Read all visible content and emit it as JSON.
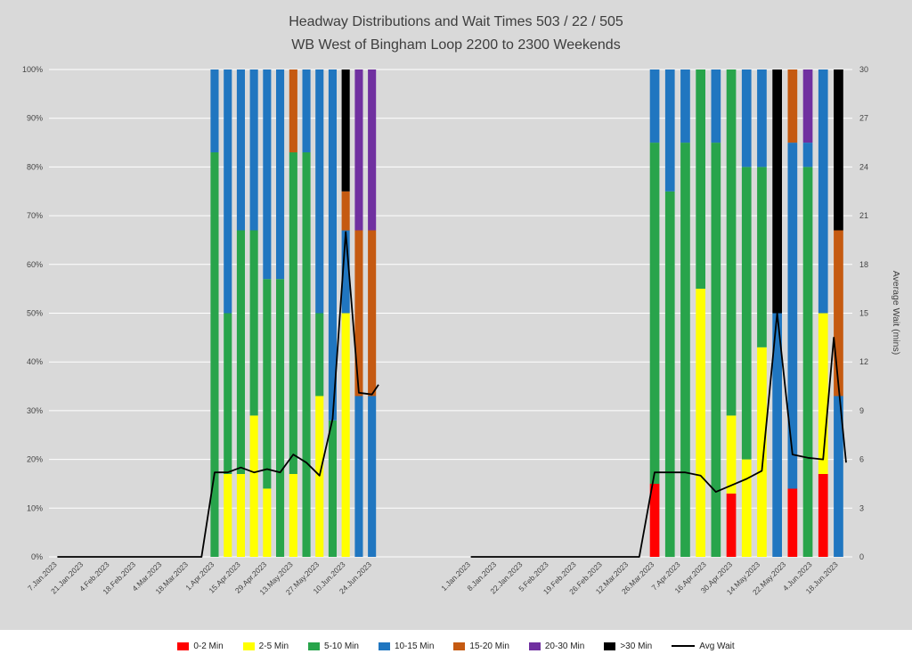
{
  "title": {
    "line1": "Headway Distributions and Wait Times 503 / 22 / 505",
    "line2": "WB West of Bingham Loop 2200 to 2300 Weekends"
  },
  "colors": {
    "page_bg": "#D9D9D9",
    "legend_bg": "#FFFFFF",
    "grid": "#FFFFFF",
    "text": "#404040",
    "red": "#FF0000",
    "yellow": "#FFFF00",
    "green": "#28A44B",
    "blue": "#2076C0",
    "brown": "#C55A11",
    "purple": "#7030A0",
    "black": "#000000",
    "line": "#000000"
  },
  "legend": [
    {
      "key": "0-2",
      "label": "0-2 Min",
      "color_key": "red",
      "type": "swatch"
    },
    {
      "key": "2-5",
      "label": "2-5 Min",
      "color_key": "yellow",
      "type": "swatch"
    },
    {
      "key": "5-10",
      "label": "5-10 Min",
      "color_key": "green",
      "type": "swatch"
    },
    {
      "key": "10-15",
      "label": "10-15 Min",
      "color_key": "blue",
      "type": "swatch"
    },
    {
      "key": "15-20",
      "label": "15-20 Min",
      "color_key": "brown",
      "type": "swatch"
    },
    {
      "key": "20-30",
      "label": "20-30 Min",
      "color_key": "purple",
      "type": "swatch"
    },
    {
      "key": "gt30",
      "label": ">30 Min",
      "color_key": "black",
      "type": "swatch"
    },
    {
      "key": "avg-wait",
      "label": "Avg Wait",
      "color_key": "line",
      "type": "line"
    }
  ],
  "chart_data": {
    "type": "bar",
    "subtype": "100pct-stacked-bars-with-secondary-line",
    "title": "Headway Distributions and Wait Times 503 / 22 / 505 - WB West of Bingham Loop 2200 to 2300 Weekends",
    "ylabel_right": "Average Wait (mins)",
    "ylim_left_pct": [
      0,
      100
    ],
    "ylim_right_min": [
      0,
      30
    ],
    "grid": true,
    "legend_position": "bottom",
    "y_left_ticks": [
      "0%",
      "10%",
      "20%",
      "30%",
      "40%",
      "50%",
      "60%",
      "70%",
      "80%",
      "90%",
      "100%"
    ],
    "y_right_ticks": [
      0,
      3,
      6,
      9,
      12,
      15,
      18,
      21,
      24,
      27,
      30
    ],
    "segment_categories": [
      "0-2 Min",
      "2-5 Min",
      "5-10 Min",
      "10-15 Min",
      "15-20 Min",
      "20-30 Min",
      ">30 Min"
    ],
    "segment_colors": [
      "red",
      "yellow",
      "green",
      "blue",
      "brown",
      "purple",
      "black"
    ],
    "panels": [
      {
        "name": "left-panel",
        "n_slots": 25,
        "tick_labels": [
          {
            "slot": 0,
            "text": "7.Jan.2023"
          },
          {
            "slot": 2,
            "text": "21.Jan.2023"
          },
          {
            "slot": 4,
            "text": "4.Feb.2023"
          },
          {
            "slot": 6,
            "text": "18.Feb.2023"
          },
          {
            "slot": 8,
            "text": "4.Mar.2023"
          },
          {
            "slot": 10,
            "text": "18.Mar.2023"
          },
          {
            "slot": 12,
            "text": "1.Apr.2023"
          },
          {
            "slot": 14,
            "text": "15.Apr.2023"
          },
          {
            "slot": 16,
            "text": "29.Apr.2023"
          },
          {
            "slot": 18,
            "text": "13.May.2023"
          },
          {
            "slot": 20,
            "text": "27.May.2023"
          },
          {
            "slot": 22,
            "text": "10.Jun.2023"
          },
          {
            "slot": 24,
            "text": "24.Jun.2023"
          }
        ],
        "bars": [
          {
            "slot": 12,
            "segments": [
              0,
              0,
              83,
              17,
              0,
              0,
              0
            ]
          },
          {
            "slot": 13,
            "segments": [
              0,
              17,
              33,
              50,
              0,
              0,
              0
            ]
          },
          {
            "slot": 14,
            "segments": [
              0,
              17,
              50,
              33,
              0,
              0,
              0
            ]
          },
          {
            "slot": 15,
            "segments": [
              0,
              29,
              38,
              33,
              0,
              0,
              0
            ]
          },
          {
            "slot": 16,
            "segments": [
              0,
              14,
              43,
              43,
              0,
              0,
              0
            ]
          },
          {
            "slot": 17,
            "segments": [
              0,
              0,
              57,
              43,
              0,
              0,
              0
            ]
          },
          {
            "slot": 18,
            "segments": [
              0,
              17,
              66,
              0,
              17,
              0,
              0
            ]
          },
          {
            "slot": 19,
            "segments": [
              0,
              0,
              83,
              17,
              0,
              0,
              0
            ]
          },
          {
            "slot": 20,
            "segments": [
              0,
              33,
              17,
              50,
              0,
              0,
              0
            ]
          },
          {
            "slot": 21,
            "segments": [
              0,
              0,
              28,
              72,
              0,
              0,
              0
            ]
          },
          {
            "slot": 22,
            "segments": [
              0,
              50,
              0,
              17,
              8,
              0,
              25
            ]
          },
          {
            "slot": 23,
            "segments": [
              0,
              0,
              0,
              33,
              34,
              33,
              0
            ]
          },
          {
            "slot": 24,
            "segments": [
              0,
              0,
              0,
              33,
              34,
              33,
              0
            ]
          }
        ],
        "avg_wait": [
          {
            "slot": 0,
            "value": 0
          },
          {
            "slot": 11,
            "value": 0
          },
          {
            "slot": 12,
            "value": 5.2
          },
          {
            "slot": 13,
            "value": 5.2
          },
          {
            "slot": 14,
            "value": 5.5
          },
          {
            "slot": 15,
            "value": 5.2
          },
          {
            "slot": 16,
            "value": 5.4
          },
          {
            "slot": 17,
            "value": 5.2
          },
          {
            "slot": 18,
            "value": 6.3
          },
          {
            "slot": 19,
            "value": 5.8
          },
          {
            "slot": 20,
            "value": 5.0
          },
          {
            "slot": 21,
            "value": 8.5
          },
          {
            "slot": 22,
            "value": 20.0
          },
          {
            "slot": 23,
            "value": 10.1
          },
          {
            "slot": 24,
            "value": 10.0
          },
          {
            "slot": 24.5,
            "value": 10.6
          }
        ]
      },
      {
        "name": "right-panel",
        "n_slots": 25,
        "tick_labels": [
          {
            "slot": 0,
            "text": "1.Jan.2023"
          },
          {
            "slot": 1.7,
            "text": "8.Jan.2023"
          },
          {
            "slot": 3.4,
            "text": "22.Jan.2023"
          },
          {
            "slot": 5.1,
            "text": "5.Feb.2023"
          },
          {
            "slot": 6.9,
            "text": "19.Feb.2023"
          },
          {
            "slot": 8.6,
            "text": "26.Feb.2023"
          },
          {
            "slot": 10.3,
            "text": "12.Mar.2023"
          },
          {
            "slot": 12,
            "text": "26.Mar.2023"
          },
          {
            "slot": 13.7,
            "text": "7.Apr.2023"
          },
          {
            "slot": 15.4,
            "text": "16.Apr.2023"
          },
          {
            "slot": 17.1,
            "text": "30.Apr.2023"
          },
          {
            "slot": 18.9,
            "text": "14.May.2023"
          },
          {
            "slot": 20.6,
            "text": "22.May.2023"
          },
          {
            "slot": 22.3,
            "text": "4.Jun.2023"
          },
          {
            "slot": 24,
            "text": "18.Jun.2023"
          }
        ],
        "bars": [
          {
            "slot": 12,
            "segments": [
              15,
              0,
              70,
              15,
              0,
              0,
              0
            ]
          },
          {
            "slot": 13,
            "segments": [
              0,
              0,
              75,
              25,
              0,
              0,
              0
            ]
          },
          {
            "slot": 14,
            "segments": [
              0,
              0,
              85,
              15,
              0,
              0,
              0
            ]
          },
          {
            "slot": 15,
            "segments": [
              0,
              55,
              45,
              0,
              0,
              0,
              0
            ]
          },
          {
            "slot": 16,
            "segments": [
              0,
              0,
              85,
              15,
              0,
              0,
              0
            ]
          },
          {
            "slot": 17,
            "segments": [
              13,
              16,
              71,
              0,
              0,
              0,
              0
            ]
          },
          {
            "slot": 18,
            "segments": [
              0,
              20,
              60,
              20,
              0,
              0,
              0
            ]
          },
          {
            "slot": 19,
            "segments": [
              0,
              43,
              37,
              20,
              0,
              0,
              0
            ]
          },
          {
            "slot": 20,
            "segments": [
              0,
              0,
              0,
              50,
              0,
              0,
              50
            ]
          },
          {
            "slot": 21,
            "segments": [
              14,
              0,
              0,
              71,
              15,
              0,
              0
            ]
          },
          {
            "slot": 22,
            "segments": [
              0,
              0,
              80,
              5,
              0,
              15,
              0
            ]
          },
          {
            "slot": 23,
            "segments": [
              17,
              33,
              0,
              50,
              0,
              0,
              0
            ]
          },
          {
            "slot": 24,
            "segments": [
              0,
              0,
              0,
              33,
              34,
              0,
              33
            ]
          }
        ],
        "avg_wait": [
          {
            "slot": 0,
            "value": 0
          },
          {
            "slot": 11,
            "value": 0
          },
          {
            "slot": 12,
            "value": 5.2
          },
          {
            "slot": 13,
            "value": 5.2
          },
          {
            "slot": 14,
            "value": 5.2
          },
          {
            "slot": 15,
            "value": 5.0
          },
          {
            "slot": 16,
            "value": 4.0
          },
          {
            "slot": 17,
            "value": 4.4
          },
          {
            "slot": 18,
            "value": 4.8
          },
          {
            "slot": 19,
            "value": 5.3
          },
          {
            "slot": 20,
            "value": 15.0
          },
          {
            "slot": 21,
            "value": 6.3
          },
          {
            "slot": 22,
            "value": 6.1
          },
          {
            "slot": 23,
            "value": 6.0
          },
          {
            "slot": 23.7,
            "value": 13.5
          },
          {
            "slot": 24.5,
            "value": 5.8
          }
        ]
      }
    ]
  }
}
